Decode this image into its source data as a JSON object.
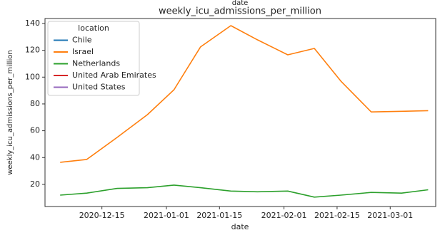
{
  "chart_data": {
    "type": "line",
    "supertitle": "date",
    "title": "weekly_icu_admissions_per_million",
    "x_label": "date",
    "y_label": "weekly_icu_admissions_per_million",
    "legend_title": "location",
    "legend_position": "upper left",
    "x": [
      "2020-12-04",
      "2020-12-11",
      "2020-12-19",
      "2020-12-27",
      "2021-01-03",
      "2021-01-10",
      "2021-01-18",
      "2021-01-25",
      "2021-02-02",
      "2021-02-09",
      "2021-02-16",
      "2021-02-24",
      "2021-03-04",
      "2021-03-11"
    ],
    "xlim": [
      "2020-11-30",
      "2021-03-13"
    ],
    "xticks": [
      "2020-12-15",
      "2021-01-01",
      "2021-01-15",
      "2021-02-01",
      "2021-02-15",
      "2021-03-01"
    ],
    "ylim": [
      3.5,
      143.7
    ],
    "yticks": [
      20,
      40,
      60,
      80,
      100,
      120,
      140
    ],
    "series": [
      {
        "name": "Chile",
        "color": "#1f77b4",
        "values": [
          null,
          null,
          null,
          null,
          null,
          null,
          null,
          null,
          null,
          null,
          null,
          null,
          null,
          null
        ]
      },
      {
        "name": "Israel",
        "color": "#ff7f0e",
        "values": [
          36.5,
          38.6,
          55,
          72,
          90.6,
          122.5,
          138.4,
          127.8,
          116.6,
          121.4,
          97,
          74,
          74.5,
          75
        ]
      },
      {
        "name": "Netherlands",
        "color": "#2ca02c",
        "values": [
          12,
          13.5,
          17,
          17.5,
          19.5,
          17.5,
          15,
          14.5,
          15,
          10.5,
          12,
          14,
          13.5,
          16
        ]
      },
      {
        "name": "United Arab Emirates",
        "color": "#d62728",
        "values": [
          null,
          null,
          null,
          null,
          null,
          null,
          null,
          null,
          null,
          null,
          null,
          null,
          null,
          null
        ]
      },
      {
        "name": "United States",
        "color": "#9467bd",
        "values": [
          null,
          null,
          null,
          null,
          null,
          null,
          null,
          null,
          null,
          null,
          null,
          null,
          null,
          null
        ]
      }
    ]
  }
}
